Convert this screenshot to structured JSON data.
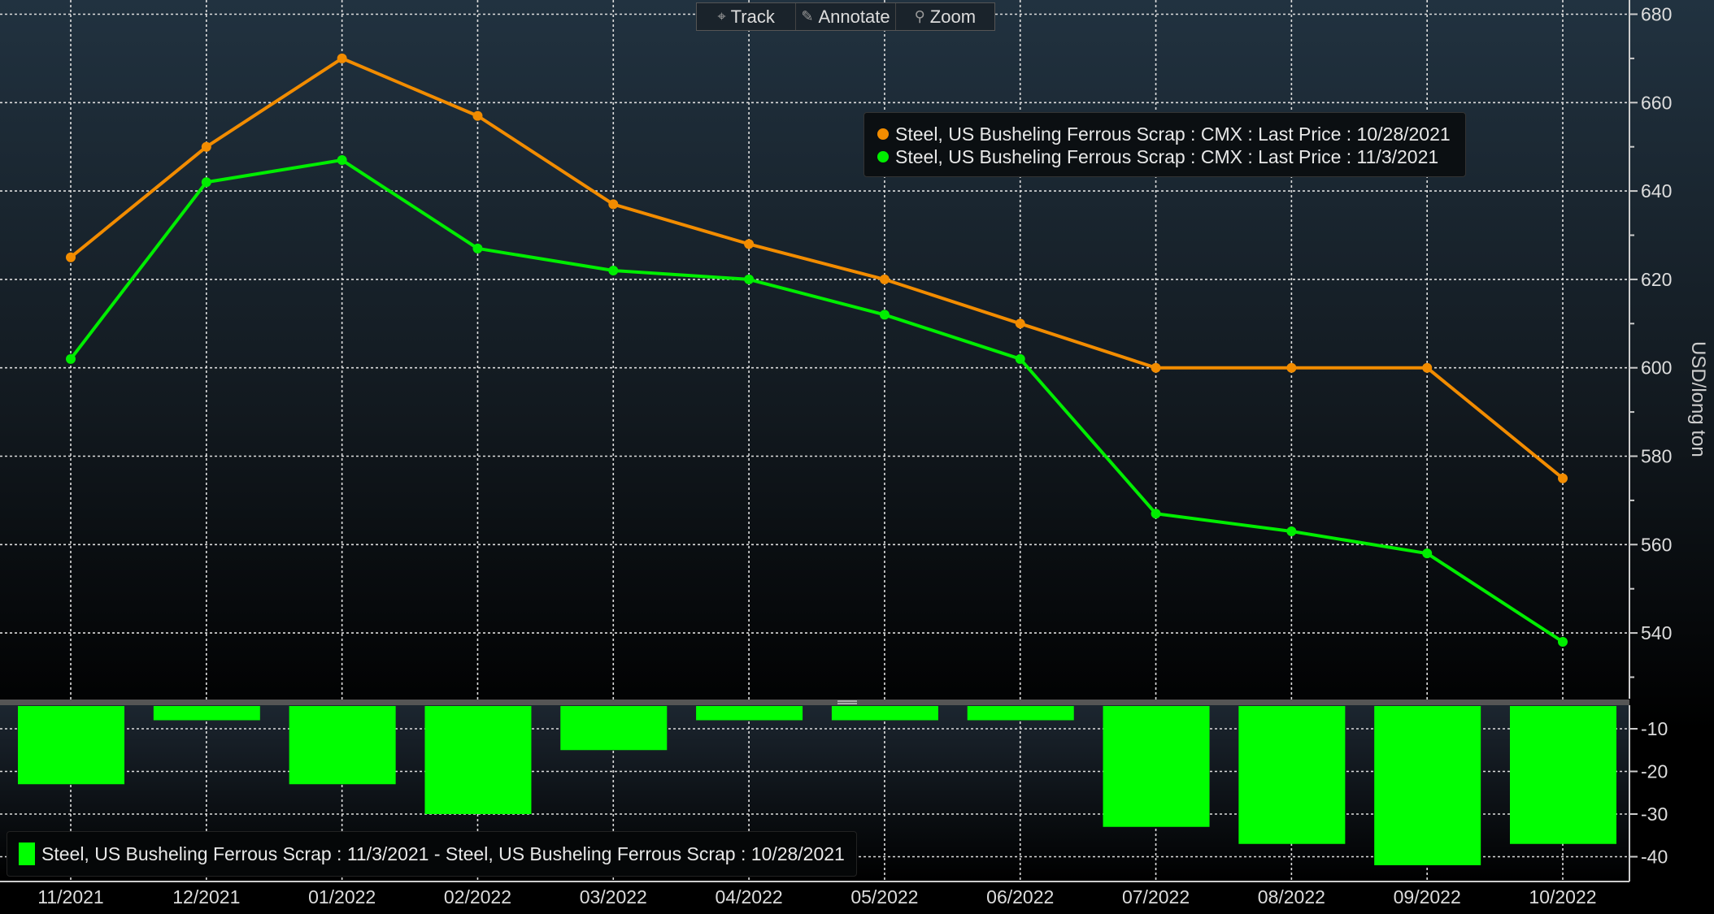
{
  "toolbar": {
    "track": "Track",
    "annotate": "Annotate",
    "zoom": "Zoom"
  },
  "chart_data": [
    {
      "type": "line",
      "categories": [
        "11/2021",
        "12/2021",
        "01/2022",
        "02/2022",
        "03/2022",
        "04/2022",
        "05/2022",
        "06/2022",
        "07/2022",
        "08/2022",
        "09/2022",
        "10/2022"
      ],
      "series": [
        {
          "name": "Steel, US Busheling Ferrous Scrap : CMX : Last Price : 10/28/2021",
          "color": "#f28c00",
          "values": [
            625,
            650,
            670,
            657,
            637,
            628,
            620,
            610,
            600,
            600,
            600,
            575
          ]
        },
        {
          "name": "Steel, US Busheling Ferrous Scrap : CMX : Last Price : 11/3/2021",
          "color": "#00ee00",
          "values": [
            602,
            642,
            647,
            627,
            622,
            620,
            612,
            602,
            567,
            563,
            558,
            538
          ]
        }
      ],
      "ylabel": "USD/long ton",
      "ylim": [
        525,
        680
      ],
      "yticks": [
        540,
        560,
        580,
        600,
        620,
        640,
        660,
        680
      ],
      "grid": true,
      "legend": "top-right"
    },
    {
      "type": "bar",
      "categories": [
        "11/2021",
        "12/2021",
        "01/2022",
        "02/2022",
        "03/2022",
        "04/2022",
        "05/2022",
        "06/2022",
        "07/2022",
        "08/2022",
        "09/2022",
        "10/2022"
      ],
      "series": [
        {
          "name": "Steel, US Busheling Ferrous Scrap : 11/3/2021 - Steel, US Busheling Ferrous Scrap : 10/28/2021",
          "color": "#00ff00",
          "values": [
            -23,
            -8,
            -23,
            -30,
            -15,
            -8,
            -8,
            -8,
            -33,
            -37,
            -42,
            -37
          ]
        }
      ],
      "ylim": [
        -45,
        -5
      ],
      "yticks": [
        -10,
        -20,
        -30,
        -40
      ],
      "grid": true,
      "legend": "bottom-left"
    }
  ]
}
